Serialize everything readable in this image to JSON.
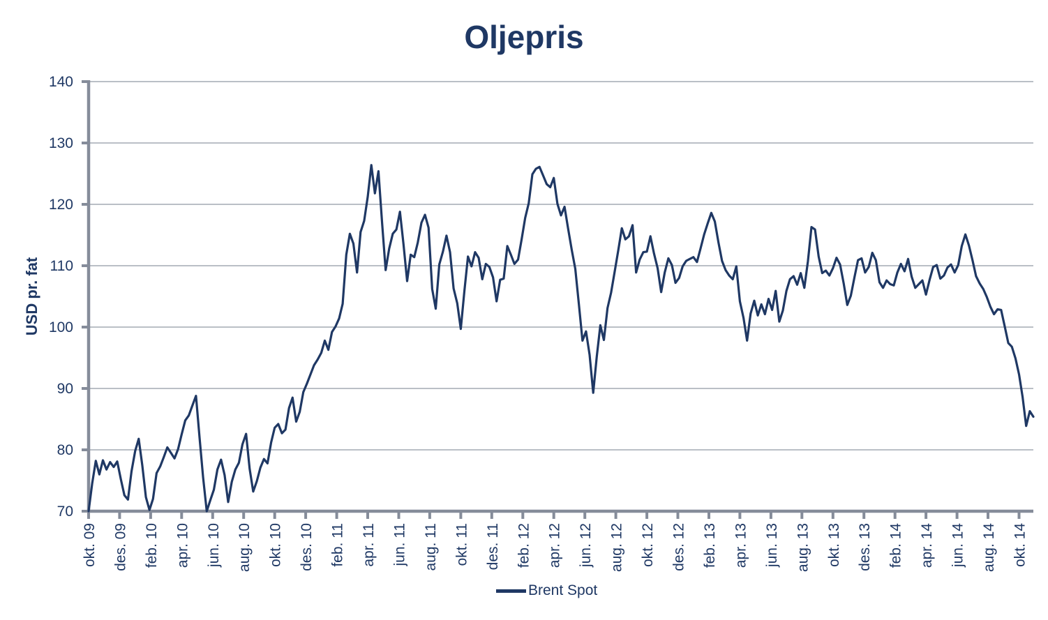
{
  "chart_data": {
    "type": "line",
    "title": "Oljepris",
    "ylabel": "USD pr. fat",
    "xlabel": "",
    "ylim": [
      70,
      140
    ],
    "ytick_step": 10,
    "grid": "horizontal",
    "legend_position": "bottom-center",
    "x_tick_labels": [
      "okt. 09",
      "des. 09",
      "feb. 10",
      "apr. 10",
      "jun. 10",
      "aug. 10",
      "okt. 10",
      "des. 10",
      "feb. 11",
      "apr. 11",
      "jun. 11",
      "aug. 11",
      "okt. 11",
      "des. 11",
      "feb. 12",
      "apr. 12",
      "jun. 12",
      "aug. 12",
      "okt. 12",
      "des. 12",
      "feb. 13",
      "apr. 13",
      "jun. 13",
      "aug. 13",
      "okt. 13",
      "des. 13",
      "feb. 14",
      "apr. 14",
      "jun. 14",
      "aug. 14",
      "okt. 14"
    ],
    "points_per_tick": 8.6667,
    "x_axis_points": 264,
    "series": [
      {
        "name": "Brent Spot",
        "color": "#1f3864",
        "values": [
          70,
          74.5,
          78.2,
          76,
          78.3,
          76.8,
          78,
          77.2,
          78.1,
          75.2,
          72.6,
          71.9,
          76.5,
          79.8,
          81.8,
          77.5,
          72.3,
          70.2,
          72,
          76.2,
          77.3,
          78.8,
          80.4,
          79.5,
          78.6,
          80.1,
          82.5,
          84.8,
          85.6,
          87.2,
          88.8,
          82,
          75.5,
          70,
          71.8,
          73.5,
          76.8,
          78.4,
          75.9,
          71.5,
          74.8,
          76.8,
          77.9,
          80.9,
          82.6,
          76.9,
          73.2,
          74.9,
          77.1,
          78.5,
          77.8,
          81.2,
          83.6,
          84.2,
          82.7,
          83.3,
          86.8,
          88.5,
          84.6,
          86.2,
          89.4,
          90.8,
          92.3,
          93.8,
          94.7,
          95.8,
          97.8,
          96.3,
          99.2,
          100.1,
          101.4,
          103.8,
          111.8,
          115.2,
          113.6,
          108.9,
          115.5,
          117.3,
          121.2,
          126.4,
          121.8,
          125.4,
          117,
          109.3,
          112.8,
          115.2,
          115.9,
          118.8,
          113.5,
          107.5,
          111.8,
          111.4,
          113.8,
          117,
          118.3,
          116.2,
          106.2,
          103,
          110.2,
          112.3,
          114.9,
          112.2,
          106.3,
          103.9,
          99.7,
          105.8,
          111.5,
          109.9,
          112.2,
          111.3,
          107.8,
          110.3,
          109.8,
          108.1,
          104.2,
          107.7,
          107.9,
          113.2,
          111.8,
          110.3,
          111,
          114.3,
          117.8,
          120.2,
          124.9,
          125.8,
          126.1,
          124.7,
          123.3,
          122.8,
          124.3,
          120.1,
          118.2,
          119.6,
          116,
          112.6,
          109.5,
          103.8,
          97.8,
          99.3,
          95.5,
          89.3,
          95.2,
          100.3,
          97.9,
          103.1,
          105.6,
          109,
          112.5,
          116.1,
          114.3,
          114.8,
          116.6,
          108.9,
          111,
          112.2,
          112.3,
          114.8,
          112,
          109.6,
          105.7,
          108.9,
          111.2,
          110.1,
          107.2,
          108,
          109.9,
          110.8,
          111.1,
          111.4,
          110.6,
          112.8,
          115.1,
          116.9,
          118.6,
          117.2,
          113.8,
          110.8,
          109.3,
          108.4,
          107.8,
          109.9,
          104.2,
          101.5,
          97.8,
          102.2,
          104.3,
          101.9,
          103.7,
          102.1,
          104.6,
          102.8,
          105.9,
          100.9,
          102.7,
          105.9,
          107.8,
          108.3,
          106.9,
          108.8,
          106.4,
          110.7,
          116.3,
          115.9,
          111.5,
          108.8,
          109.2,
          108.4,
          109.6,
          111.3,
          110.2,
          107.1,
          103.6,
          105.1,
          108.1,
          110.9,
          111.2,
          108.9,
          109.8,
          112.1,
          110.9,
          107.3,
          106.4,
          107.6,
          107,
          106.8,
          108.9,
          110.3,
          109.1,
          111.1,
          108.2,
          106.4,
          107,
          107.6,
          105.3,
          107.7,
          109.8,
          110.1,
          107.9,
          108.4,
          109.7,
          110.2,
          108.9,
          110.1,
          113.2,
          115.1,
          113.3,
          110.9,
          108.3,
          107.1,
          106.2,
          104.9,
          103.3,
          102.1,
          102.9,
          102.8,
          100.1,
          97.4,
          96.8,
          94.9,
          92.3,
          88.6,
          83.9,
          86.3,
          85.4
        ]
      }
    ]
  },
  "legend": {
    "label": "Brent Spot"
  },
  "colors": {
    "title_text": "#1f3864",
    "tick_label_text": "#1f3864",
    "axis_line": "#858c9a",
    "gridline": "#9199a3",
    "series_line": "#1f3864",
    "background": "#ffffff"
  }
}
